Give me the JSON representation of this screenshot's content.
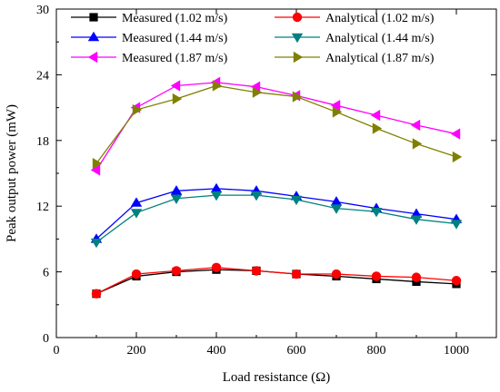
{
  "chart_data": {
    "type": "line",
    "title": "",
    "xlabel": "Load resistance (Ω)",
    "ylabel": "Peak output power (mW)",
    "xlim": [
      0,
      1100
    ],
    "ylim": [
      0,
      30
    ],
    "xticks": [
      0,
      200,
      400,
      600,
      800,
      1000
    ],
    "yticks": [
      0,
      6,
      12,
      18,
      24,
      30
    ],
    "grid": false,
    "legend_position": "top",
    "x": [
      100,
      200,
      300,
      400,
      500,
      600,
      700,
      800,
      900,
      1000
    ],
    "series": [
      {
        "name": "Measured (1.02 m/s)",
        "color": "#000000",
        "marker": "square",
        "values": [
          4.0,
          5.6,
          6.0,
          6.2,
          6.1,
          5.8,
          5.6,
          5.35,
          5.1,
          4.9
        ]
      },
      {
        "name": "Analytical (1.02 m/s)",
        "color": "#ff0000",
        "marker": "circle",
        "values": [
          4.0,
          5.8,
          6.1,
          6.4,
          6.1,
          5.8,
          5.8,
          5.6,
          5.5,
          5.2
        ]
      },
      {
        "name": "Measured (1.44 m/s)",
        "color": "#0000ff",
        "marker": "triangle-up",
        "values": [
          9.0,
          12.3,
          13.4,
          13.6,
          13.4,
          12.9,
          12.4,
          11.8,
          11.3,
          10.8
        ]
      },
      {
        "name": "Analytical (1.44 m/s)",
        "color": "#008080",
        "marker": "triangle-down",
        "values": [
          8.7,
          11.4,
          12.7,
          13.0,
          13.0,
          12.6,
          11.8,
          11.5,
          10.8,
          10.4
        ]
      },
      {
        "name": "Measured (1.87 m/s)",
        "color": "#ff00ff",
        "marker": "triangle-left",
        "values": [
          15.3,
          21.0,
          23.0,
          23.3,
          22.9,
          22.1,
          21.2,
          20.3,
          19.4,
          18.6
        ]
      },
      {
        "name": "Analytical (1.87 m/s)",
        "color": "#808000",
        "marker": "triangle-right",
        "values": [
          15.9,
          20.8,
          21.8,
          23.0,
          22.4,
          22.0,
          20.6,
          19.1,
          17.7,
          16.5
        ]
      }
    ]
  }
}
